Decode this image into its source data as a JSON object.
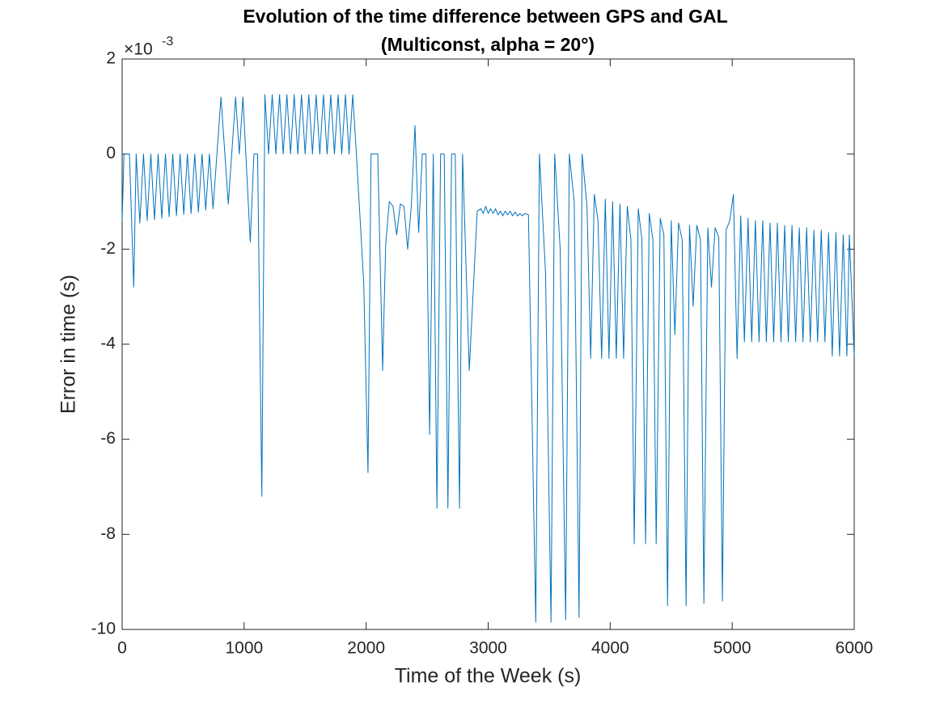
{
  "chart_data": {
    "type": "line",
    "title": [
      "Evolution of the time difference between GPS and GAL",
      "(Multiconst, alpha = 20°)"
    ],
    "xlabel": "Time of the Week (s)",
    "ylabel": "Error in time (s)",
    "y_multiplier": "×10",
    "y_exponent": "-3",
    "color": "#0072bd",
    "xlim": [
      0,
      6000
    ],
    "ylim": [
      -10,
      2
    ],
    "xticks": [
      0,
      1000,
      2000,
      3000,
      4000,
      5000,
      6000
    ],
    "yticks": [
      -10,
      -8,
      -6,
      -4,
      -2,
      0,
      2
    ],
    "x": [
      0,
      15,
      60,
      95,
      115,
      145,
      175,
      205,
      235,
      265,
      295,
      325,
      355,
      385,
      415,
      445,
      475,
      505,
      535,
      565,
      595,
      625,
      655,
      685,
      715,
      745,
      810,
      870,
      930,
      960,
      990,
      1050,
      1080,
      1110,
      1145,
      1170,
      1200,
      1230,
      1260,
      1290,
      1320,
      1350,
      1380,
      1410,
      1440,
      1470,
      1500,
      1530,
      1560,
      1590,
      1620,
      1650,
      1680,
      1710,
      1740,
      1770,
      1800,
      1830,
      1860,
      1890,
      1920,
      1980,
      2015,
      2040,
      2095,
      2135,
      2160,
      2190,
      2220,
      2250,
      2280,
      2310,
      2340,
      2370,
      2400,
      2430,
      2460,
      2490,
      2520,
      2550,
      2580,
      2610,
      2640,
      2670,
      2700,
      2730,
      2765,
      2790,
      2845,
      2910,
      2940,
      2960,
      2980,
      3000,
      3020,
      3040,
      3060,
      3080,
      3100,
      3120,
      3140,
      3160,
      3180,
      3200,
      3220,
      3240,
      3260,
      3280,
      3300,
      3330,
      3390,
      3420,
      3470,
      3515,
      3545,
      3590,
      3635,
      3665,
      3705,
      3745,
      3770,
      3810,
      3840,
      3870,
      3900,
      3930,
      3960,
      3990,
      4020,
      4050,
      4080,
      4110,
      4140,
      4170,
      4197,
      4230,
      4260,
      4290,
      4320,
      4350,
      4377,
      4410,
      4440,
      4470,
      4500,
      4530,
      4560,
      4590,
      4622,
      4650,
      4680,
      4710,
      4740,
      4768,
      4800,
      4830,
      4860,
      4890,
      4920,
      4950,
      4980,
      5010,
      5040,
      5070,
      5100,
      5130,
      5160,
      5190,
      5220,
      5250,
      5280,
      5310,
      5340,
      5370,
      5400,
      5430,
      5460,
      5490,
      5520,
      5550,
      5580,
      5610,
      5640,
      5670,
      5700,
      5730,
      5760,
      5790,
      5820,
      5850,
      5880,
      5910,
      5940,
      5960,
      6000
    ],
    "values": [
      -1.4,
      0,
      0,
      -2.8,
      0,
      -1.45,
      0,
      -1.4,
      0,
      -1.38,
      0,
      -1.35,
      0,
      -1.32,
      0,
      -1.3,
      0,
      -1.27,
      0,
      -1.25,
      0,
      -1.22,
      0,
      -1.18,
      0,
      -1.15,
      1.2,
      -1.05,
      1.2,
      0,
      1.2,
      -1.85,
      0,
      0,
      -7.2,
      1.25,
      0,
      1.25,
      0,
      1.25,
      0,
      1.25,
      0,
      1.25,
      0,
      1.25,
      0,
      1.25,
      0,
      1.25,
      0,
      1.25,
      0,
      1.25,
      0,
      1.25,
      0,
      1.25,
      0,
      1.25,
      0,
      -2.7,
      -6.7,
      0,
      0,
      -4.55,
      -1.9,
      -1,
      -1.1,
      -1.7,
      -1.05,
      -1.1,
      -2,
      -1.1,
      0.6,
      -1.65,
      0,
      0,
      -5.9,
      0,
      -7.45,
      0,
      0,
      -7.45,
      0,
      0,
      -7.45,
      0,
      -4.55,
      -1.2,
      -1.15,
      -1.25,
      -1.1,
      -1.25,
      -1.15,
      -1.25,
      -1.15,
      -1.28,
      -1.2,
      -1.3,
      -1.2,
      -1.28,
      -1.2,
      -1.3,
      -1.22,
      -1.3,
      -1.25,
      -1.3,
      -1.25,
      -1.28,
      -9.85,
      0,
      -2.5,
      -9.85,
      0,
      -2,
      -9.8,
      0,
      -1,
      -9.75,
      0,
      -1.1,
      -4.3,
      -0.85,
      -1.4,
      -4.3,
      -0.95,
      -4.3,
      -1.0,
      -4.3,
      -1.05,
      -4.3,
      -1.1,
      -1.8,
      -8.2,
      -1.15,
      -1.8,
      -8.2,
      -1.25,
      -1.8,
      -8.2,
      -1.35,
      -1.7,
      -9.5,
      -1.4,
      -3.8,
      -1.45,
      -1.8,
      -9.5,
      -1.5,
      -3.2,
      -1.5,
      -1.8,
      -9.45,
      -1.55,
      -2.8,
      -1.55,
      -1.75,
      -9.4,
      -1.6,
      -1.4,
      -0.85,
      -4.3,
      -1.3,
      -3.95,
      -1.35,
      -3.95,
      -1.4,
      -3.95,
      -1.4,
      -3.95,
      -1.45,
      -3.95,
      -1.45,
      -3.95,
      -1.5,
      -3.95,
      -1.5,
      -3.95,
      -1.55,
      -3.95,
      -1.55,
      -3.95,
      -1.6,
      -3.95,
      -1.6,
      -3.95,
      -1.65,
      -4.25,
      -1.65,
      -4.25,
      -1.7,
      -4.25,
      -1.7,
      -4.25
    ]
  }
}
